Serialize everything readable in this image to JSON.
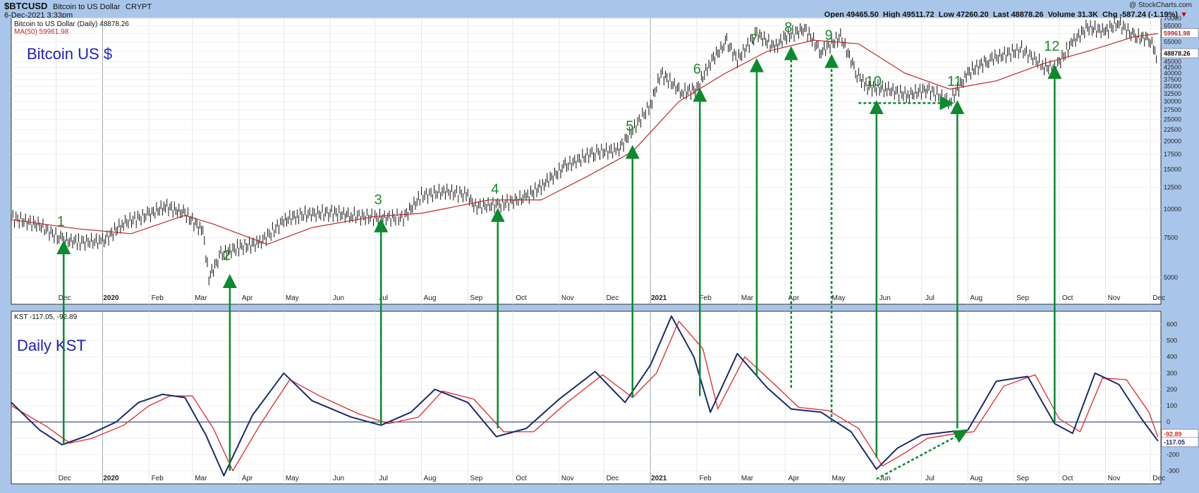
{
  "header": {
    "symbol": "$BTCUSD",
    "name": "Bitcoin to US Dollar",
    "exchange": "CRYPT",
    "date": "6-Dec-2021 3:33pm",
    "watermark": "@ StockCharts.com",
    "quote": {
      "open_label": "Open",
      "open": "49465.50",
      "high_label": "High",
      "high": "49511.72",
      "low_label": "Low",
      "low": "47260.20",
      "last_label": "Last",
      "last": "48878.26",
      "volume_label": "Volume",
      "volume": "31.3K",
      "chg_label": "Chg",
      "chg": "-587.24 (-1.19%)"
    }
  },
  "colors": {
    "background": "#a9c6ea",
    "panel": "#ffffff",
    "price": "#111111",
    "ma": "#c0272d",
    "kst": "#1a2a6e",
    "signal": "#e0282a",
    "arrows": "#0b8a2e",
    "annot": "#1f1fbf",
    "numbers": "#1c8a2e"
  },
  "chart_data": [
    {
      "type": "line",
      "panel": "price",
      "title": "Bitcoin US $",
      "legend": [
        "Bitcoin to US Dollar (Daily) 48878.26",
        "MA(50) 59961.98"
      ],
      "y_scale": "log",
      "ylim": [
        3800,
        70000
      ],
      "y_ticks": [
        5000,
        7500,
        10000,
        12500,
        15000,
        17500,
        20000,
        22500,
        25000,
        27500,
        30000,
        32500,
        35000,
        37500,
        40000,
        42500,
        45000,
        50000,
        55000,
        60000,
        65000,
        70000
      ],
      "last_labels": [
        "59961.98",
        "48878.26"
      ],
      "x_ticks": [
        "Dec",
        "2020",
        "Feb",
        "Mar",
        "Apr",
        "May",
        "Jun",
        "Jul",
        "Aug",
        "Sep",
        "Oct",
        "Nov",
        "Dec",
        "2021",
        "Feb",
        "Mar",
        "Apr",
        "May",
        "Jun",
        "Jul",
        "Aug",
        "Sep",
        "Oct",
        "Nov",
        "Dec"
      ],
      "series": [
        {
          "name": "Bitcoin to US Dollar (Daily)",
          "x": [
            "2019-11-01",
            "2019-11-20",
            "2019-12-05",
            "2019-12-17",
            "2020-01-01",
            "2020-01-15",
            "2020-02-01",
            "2020-02-12",
            "2020-02-25",
            "2020-03-08",
            "2020-03-12",
            "2020-03-20",
            "2020-04-01",
            "2020-04-15",
            "2020-05-01",
            "2020-05-10",
            "2020-06-01",
            "2020-06-15",
            "2020-07-01",
            "2020-07-20",
            "2020-08-01",
            "2020-08-17",
            "2020-09-01",
            "2020-09-05",
            "2020-09-22",
            "2020-10-10",
            "2020-10-22",
            "2020-11-05",
            "2020-11-25",
            "2020-12-10",
            "2020-12-17",
            "2021-01-01",
            "2021-01-08",
            "2021-01-22",
            "2021-02-01",
            "2021-02-10",
            "2021-02-21",
            "2021-02-28",
            "2021-03-13",
            "2021-03-25",
            "2021-04-01",
            "2021-04-14",
            "2021-04-25",
            "2021-05-08",
            "2021-05-19",
            "2021-05-25",
            "2021-06-08",
            "2021-06-22",
            "2021-07-05",
            "2021-07-20",
            "2021-08-01",
            "2021-08-15",
            "2021-09-06",
            "2021-09-21",
            "2021-09-28",
            "2021-10-10",
            "2021-10-20",
            "2021-11-01",
            "2021-11-09",
            "2021-11-20",
            "2021-12-01",
            "2021-12-04",
            "2021-12-06"
          ],
          "values": [
            9200,
            8500,
            7300,
            7200,
            7200,
            8700,
            9500,
            10300,
            9600,
            8000,
            5000,
            6300,
            6800,
            7100,
            8900,
            9400,
            9700,
            9400,
            9200,
            9200,
            11500,
            12000,
            11600,
            10300,
            10500,
            11300,
            13000,
            15500,
            18000,
            18200,
            21000,
            29000,
            40000,
            33000,
            34000,
            45000,
            55000,
            46000,
            60000,
            52000,
            58000,
            63000,
            50000,
            58000,
            40000,
            35000,
            34000,
            32000,
            34000,
            30000,
            40000,
            46000,
            51000,
            43000,
            42000,
            55000,
            64000,
            61000,
            67500,
            58000,
            57000,
            48000,
            48878
          ]
        },
        {
          "name": "MA(50)",
          "x": [
            "2019-11-01",
            "2019-12-15",
            "2020-01-20",
            "2020-02-25",
            "2020-03-15",
            "2020-04-20",
            "2020-05-20",
            "2020-07-01",
            "2020-08-01",
            "2020-09-15",
            "2020-10-20",
            "2020-11-20",
            "2020-12-20",
            "2021-01-20",
            "2021-02-20",
            "2021-03-20",
            "2021-04-20",
            "2021-05-20",
            "2021-06-20",
            "2021-07-20",
            "2021-08-20",
            "2021-09-20",
            "2021-10-20",
            "2021-11-20",
            "2021-12-06"
          ],
          "values": [
            9000,
            8200,
            7800,
            9400,
            8600,
            7000,
            8300,
            9300,
            9600,
            11000,
            11000,
            14000,
            18000,
            30000,
            40000,
            50000,
            56000,
            54000,
            40000,
            34000,
            37000,
            44000,
            50000,
            58000,
            59962
          ]
        }
      ],
      "annotations": [
        "1",
        "2",
        "3",
        "4",
        "5",
        "6",
        "7",
        "8",
        "9",
        "10",
        "11",
        "12"
      ]
    },
    {
      "type": "line",
      "panel": "indicator",
      "title": "Daily KST",
      "legend": [
        "KST -117.05, -92.89"
      ],
      "ylim": [
        -380,
        680
      ],
      "y_ticks": [
        -300,
        -200,
        -100,
        0,
        100,
        200,
        300,
        400,
        500,
        600
      ],
      "last_labels": [
        "-92.89",
        "-117.05"
      ],
      "x_ticks": [
        "Dec",
        "2020",
        "Feb",
        "Mar",
        "Apr",
        "May",
        "Jun",
        "Jul",
        "Aug",
        "Sep",
        "Oct",
        "Nov",
        "Dec",
        "2021",
        "Feb",
        "Mar",
        "Apr",
        "May",
        "Jun",
        "Jul",
        "Aug",
        "Sep",
        "Oct",
        "Nov",
        "Dec"
      ],
      "series": [
        {
          "name": "KST",
          "x": [
            "2019-11-01",
            "2019-11-20",
            "2019-12-05",
            "2019-12-20",
            "2020-01-10",
            "2020-01-25",
            "2020-02-10",
            "2020-02-25",
            "2020-03-10",
            "2020-03-22",
            "2020-04-10",
            "2020-05-01",
            "2020-05-20",
            "2020-06-15",
            "2020-07-05",
            "2020-07-25",
            "2020-08-10",
            "2020-09-01",
            "2020-09-20",
            "2020-10-10",
            "2020-11-01",
            "2020-11-25",
            "2020-12-15",
            "2021-01-01",
            "2021-01-15",
            "2021-01-30",
            "2021-02-10",
            "2021-02-28",
            "2021-03-20",
            "2021-04-05",
            "2021-04-25",
            "2021-05-15",
            "2021-06-01",
            "2021-06-15",
            "2021-07-01",
            "2021-07-20",
            "2021-08-01",
            "2021-08-20",
            "2021-09-10",
            "2021-09-28",
            "2021-10-10",
            "2021-10-25",
            "2021-11-10",
            "2021-11-25",
            "2021-12-06"
          ],
          "values": [
            120,
            -50,
            -140,
            -90,
            0,
            120,
            170,
            150,
            -80,
            -330,
            40,
            300,
            130,
            30,
            -20,
            60,
            200,
            120,
            -90,
            -40,
            140,
            310,
            120,
            350,
            650,
            400,
            60,
            420,
            210,
            80,
            60,
            -60,
            -290,
            -160,
            -80,
            -60,
            -50,
            250,
            280,
            -10,
            -70,
            300,
            230,
            20,
            -117
          ]
        },
        {
          "name": "Signal",
          "x": [
            "2019-11-01",
            "2019-11-25",
            "2019-12-10",
            "2019-12-25",
            "2020-01-15",
            "2020-02-01",
            "2020-02-15",
            "2020-03-01",
            "2020-03-15",
            "2020-03-28",
            "2020-04-15",
            "2020-05-05",
            "2020-05-25",
            "2020-06-20",
            "2020-07-10",
            "2020-07-30",
            "2020-08-15",
            "2020-09-05",
            "2020-09-25",
            "2020-10-15",
            "2020-11-05",
            "2020-11-30",
            "2020-12-20",
            "2021-01-05",
            "2021-01-20",
            "2021-02-05",
            "2021-02-15",
            "2021-03-05",
            "2021-03-25",
            "2021-04-10",
            "2021-04-30",
            "2021-05-20",
            "2021-06-05",
            "2021-06-20",
            "2021-07-05",
            "2021-07-25",
            "2021-08-05",
            "2021-08-25",
            "2021-09-15",
            "2021-10-01",
            "2021-10-15",
            "2021-10-30",
            "2021-11-15",
            "2021-11-30",
            "2021-12-06"
          ],
          "values": [
            100,
            -30,
            -130,
            -100,
            -20,
            100,
            160,
            160,
            -40,
            -300,
            -20,
            260,
            160,
            50,
            -10,
            30,
            190,
            140,
            -60,
            -60,
            110,
            290,
            150,
            300,
            620,
            450,
            80,
            400,
            230,
            90,
            70,
            -40,
            -270,
            -190,
            -100,
            -70,
            -60,
            220,
            290,
            20,
            -60,
            270,
            260,
            60,
            -93
          ]
        }
      ],
      "annotations": []
    }
  ]
}
